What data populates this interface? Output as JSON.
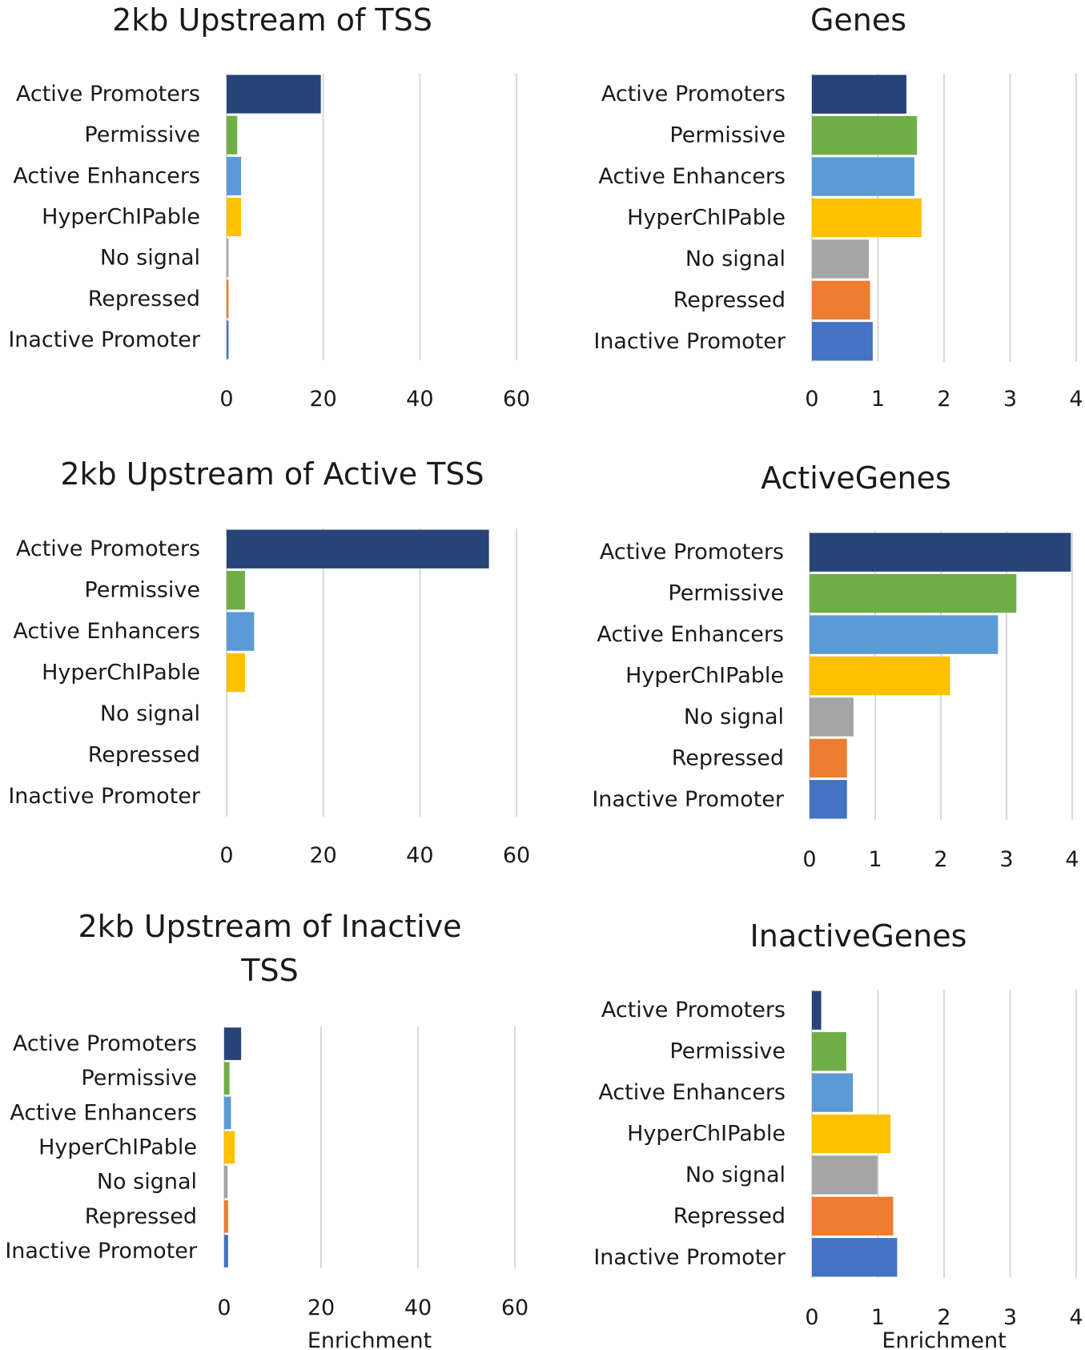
{
  "figure": {
    "xlabel": "Enrichment"
  },
  "colors": {
    "Active Promoters": "#264478",
    "Permissive": "#70ad47",
    "Active Enhancers": "#5b9bd5",
    "HyperChIPable": "#ffc000",
    "No signal": "#a5a5a5",
    "Repressed": "#ed7d31",
    "Inactive Promoter": "#4472c4"
  },
  "chart_data": [
    {
      "id": "tss",
      "type": "bar",
      "orientation": "horizontal",
      "title": [
        "2kb Upstream of TSS"
      ],
      "categories": [
        "Active Promoters",
        "Permissive",
        "Active Enhancers",
        "HyperChIPable",
        "No signal",
        "Repressed",
        "Inactive Promoter"
      ],
      "values": [
        19.5,
        2.2,
        3.0,
        3.0,
        0.4,
        0.4,
        0.4
      ],
      "xlim": [
        0,
        60
      ],
      "xticks": [
        0,
        20,
        40,
        60
      ],
      "xlabel": "",
      "grid": true
    },
    {
      "id": "genes",
      "type": "bar",
      "orientation": "horizontal",
      "title": [
        "Genes"
      ],
      "categories": [
        "Active Promoters",
        "Permissive",
        "Active Enhancers",
        "HyperChIPable",
        "No signal",
        "Repressed",
        "Inactive Promoter"
      ],
      "values": [
        1.43,
        1.59,
        1.55,
        1.66,
        0.86,
        0.88,
        0.92
      ],
      "xlim": [
        0,
        4
      ],
      "xticks": [
        0,
        1,
        2,
        3,
        4
      ],
      "xlabel": "",
      "grid": true
    },
    {
      "id": "active-tss",
      "type": "bar",
      "orientation": "horizontal",
      "title": [
        "2kb Upstream of Active TSS"
      ],
      "categories": [
        "Active Promoters",
        "Permissive",
        "Active Enhancers",
        "HyperChIPable",
        "No signal",
        "Repressed",
        "Inactive Promoter"
      ],
      "values": [
        54.3,
        3.8,
        5.7,
        3.8,
        0,
        0,
        0
      ],
      "xlim": [
        0,
        60
      ],
      "xticks": [
        0,
        20,
        40,
        60
      ],
      "xlabel": "",
      "grid": true
    },
    {
      "id": "active-genes",
      "type": "bar",
      "orientation": "horizontal",
      "title": [
        "ActiveGenes"
      ],
      "categories": [
        "Active Promoters",
        "Permissive",
        "Active Enhancers",
        "HyperChIPable",
        "No signal",
        "Repressed",
        "Inactive Promoter"
      ],
      "values": [
        3.98,
        3.15,
        2.87,
        2.14,
        0.67,
        0.57,
        0.57
      ],
      "xlim": [
        0,
        4
      ],
      "xticks": [
        0,
        1,
        2,
        3,
        4
      ],
      "xlabel": "",
      "grid": true
    },
    {
      "id": "inactive-tss",
      "type": "bar",
      "orientation": "horizontal",
      "title": [
        "2kb Upstream of Inactive",
        "TSS"
      ],
      "categories": [
        "Active Promoters",
        "Permissive",
        "Active Enhancers",
        "HyperChIPable",
        "No signal",
        "Repressed",
        "Inactive Promoter"
      ],
      "values": [
        3.5,
        1.1,
        1.4,
        2.2,
        0.7,
        0.8,
        0.8
      ],
      "xlim": [
        0,
        60
      ],
      "xticks": [
        0,
        20,
        40,
        60
      ],
      "xlabel": "Enrichment",
      "grid": true
    },
    {
      "id": "inactive-genes",
      "type": "bar",
      "orientation": "horizontal",
      "title": [
        "InactiveGenes"
      ],
      "categories": [
        "Active Promoters",
        "Permissive",
        "Active Enhancers",
        "HyperChIPable",
        "No signal",
        "Repressed",
        "Inactive Promoter"
      ],
      "values": [
        0.14,
        0.52,
        0.62,
        1.19,
        0.99,
        1.23,
        1.29
      ],
      "xlim": [
        0,
        4
      ],
      "xticks": [
        0,
        1,
        2,
        3,
        4
      ],
      "xlabel": "Enrichment",
      "grid": true
    }
  ]
}
